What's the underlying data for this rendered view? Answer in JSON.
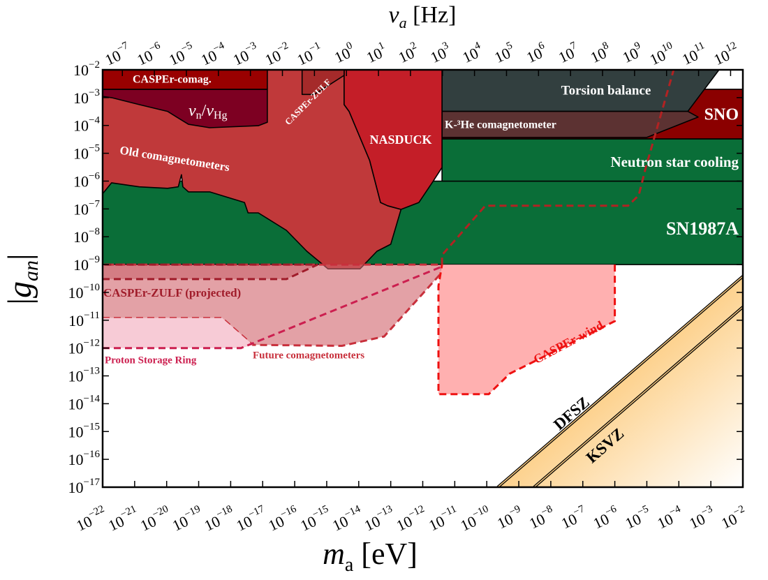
{
  "chart_data": {
    "type": "region",
    "x_label": "ma [eV]",
    "y_label": "|gan|",
    "x2_label": "νa [Hz]",
    "log_x": true,
    "log_y": true,
    "xlim": [
      1e-22,
      0.01
    ],
    "ylim": [
      1e-17,
      0.01
    ],
    "x2lim": [
      2.418e-08,
      2418000000000.0
    ],
    "xticks": [
      {
        "value": 1e-22,
        "label": "10−22"
      },
      {
        "value": 1e-21,
        "label": "10−21"
      },
      {
        "value": 1e-20,
        "label": "10−20"
      },
      {
        "value": 1e-19,
        "label": "10−19"
      },
      {
        "value": 1e-18,
        "label": "10−18"
      },
      {
        "value": 1e-17,
        "label": "10−17"
      },
      {
        "value": 1e-16,
        "label": "10−16"
      },
      {
        "value": 1e-15,
        "label": "10−15"
      },
      {
        "value": 1e-14,
        "label": "10−14"
      },
      {
        "value": 1e-13,
        "label": "10−13"
      },
      {
        "value": 1e-12,
        "label": "10−12"
      },
      {
        "value": 1e-11,
        "label": "10−11"
      },
      {
        "value": 1e-10,
        "label": "10−10"
      },
      {
        "value": 1e-09,
        "label": "10−9"
      },
      {
        "value": 1e-08,
        "label": "10−8"
      },
      {
        "value": 1e-07,
        "label": "10−7"
      },
      {
        "value": 1e-06,
        "label": "10−6"
      },
      {
        "value": 1e-05,
        "label": "10−5"
      },
      {
        "value": 0.0001,
        "label": "10−4"
      },
      {
        "value": 0.001,
        "label": "10−3"
      },
      {
        "value": 0.01,
        "label": "10−2"
      }
    ],
    "yticks": [
      {
        "value": 1e-17,
        "label": "10−17"
      },
      {
        "value": 1e-16,
        "label": "10−16"
      },
      {
        "value": 1e-15,
        "label": "10−15"
      },
      {
        "value": 1e-14,
        "label": "10−14"
      },
      {
        "value": 1e-13,
        "label": "10−13"
      },
      {
        "value": 1e-12,
        "label": "10−12"
      },
      {
        "value": 1e-11,
        "label": "10−11"
      },
      {
        "value": 1e-10,
        "label": "10−10"
      },
      {
        "value": 1e-09,
        "label": "10−9"
      },
      {
        "value": 1e-08,
        "label": "10−8"
      },
      {
        "value": 1e-07,
        "label": "10−7"
      },
      {
        "value": 1e-06,
        "label": "10−6"
      },
      {
        "value": 1e-05,
        "label": "10−5"
      },
      {
        "value": 0.0001,
        "label": "10−4"
      },
      {
        "value": 0.001,
        "label": "10−3"
      },
      {
        "value": 0.01,
        "label": "10−2"
      }
    ],
    "x2ticks": [
      {
        "value": 1e-07,
        "label": "10−7"
      },
      {
        "value": 1e-06,
        "label": "10−6"
      },
      {
        "value": 1e-05,
        "label": "10−5"
      },
      {
        "value": 0.0001,
        "label": "10−4"
      },
      {
        "value": 0.001,
        "label": "10−3"
      },
      {
        "value": 0.01,
        "label": "10−2"
      },
      {
        "value": 0.1,
        "label": "10−1"
      },
      {
        "value": 1,
        "label": "100"
      },
      {
        "value": 10,
        "label": "101"
      },
      {
        "value": 100,
        "label": "102"
      },
      {
        "value": 1000,
        "label": "103"
      },
      {
        "value": 10000.0,
        "label": "104"
      },
      {
        "value": 100000.0,
        "label": "105"
      },
      {
        "value": 1000000.0,
        "label": "106"
      },
      {
        "value": 10000000.0,
        "label": "107"
      },
      {
        "value": 100000000.0,
        "label": "108"
      },
      {
        "value": 1000000000.0,
        "label": "109"
      },
      {
        "value": 10000000000.0,
        "label": "1010"
      },
      {
        "value": 100000000000.0,
        "label": "1011"
      },
      {
        "value": 1000000000000.0,
        "label": "1012"
      }
    ],
    "regions": [
      {
        "x": [
          1e-22,
          0.01,
          0.01,
          1e-22
        ],
        "y": [
          1e-09,
          1e-09,
          1e-06,
          1e-06
        ],
        "color": "#0a6e38",
        "stroke": "#000"
      },
      {
        "x": [
          4e-12,
          0.01,
          0.01,
          4e-12
        ],
        "y": [
          1e-06,
          1e-06,
          3.3e-05,
          3.3e-05
        ],
        "color": "#0a6e38",
        "stroke": "#000"
      },
      {
        "x": [
          4e-12,
          0.01,
          0.01,
          4e-12
        ],
        "y": [
          3.3e-05,
          3.3e-05,
          0.002,
          0.002
        ],
        "color": "#8b0000",
        "stroke": "#000"
      },
      {
        "x": [
          4e-12,
          0.0018,
          0.00019,
          4e-12
        ],
        "y": [
          0.01,
          0.01,
          0.00032,
          0.00032
        ],
        "color": "#323f3f",
        "stroke": "#000"
      },
      {
        "x": [
          4e-12,
          0.00019,
          0.0004,
          1e-05,
          4e-12
        ],
        "y": [
          0.00032,
          0.00032,
          0.0002,
          3.7e-05,
          3.7e-05
        ],
        "color": "#5c3232",
        "stroke": "#000"
      },
      {
        "x": [
          1e-22,
          3.5e-15,
          3.5e-15,
          5e-15,
          2.2e-14,
          4.8e-14,
          8e-14,
          2.1e-13,
          1e-13,
          3.7e-14,
          1.1e-14,
          1.1e-15,
          2.4e-16,
          5.5e-17,
          7.3e-18,
          3.5e-18,
          2.7e-18,
          2.2e-19,
          4.8e-20,
          3.2e-20,
          2.9e-20,
          2.3e-20,
          1.07e-20,
          1.4e-21,
          1.9e-22,
          1e-22
        ],
        "y": [
          0.01,
          0.01,
          0.00056,
          0.00032,
          5.5e-06,
          1.7e-07,
          1.3e-07,
          9.6e-08,
          5.4e-09,
          3e-09,
          7e-10,
          7e-10,
          3e-09,
          1.7e-08,
          7.2e-08,
          7.2e-08,
          1.7e-07,
          4.1e-07,
          4.1e-07,
          6.2e-07,
          1.7e-06,
          6.2e-07,
          5.5e-07,
          6.2e-07,
          8.7e-07,
          3.5e-07
        ],
        "color": "#c0393a",
        "stroke": "#000"
      },
      {
        "x": [
          3.5e-15,
          4e-12,
          4e-12,
          2.1e-12,
          7.6e-13,
          2.1e-13,
          8e-14,
          4.8e-14,
          2.2e-14,
          5e-15,
          3.5e-15
        ],
        "y": [
          0.01,
          0.01,
          3.1e-06,
          9.8e-07,
          1.7e-07,
          9.6e-08,
          1.3e-07,
          1.7e-07,
          5.5e-06,
          0.00032,
          0.00056
        ],
        "color": "#c41e28",
        "stroke": "#000"
      },
      {
        "x": [
          1e-22,
          1.4e-17,
          1.4e-17,
          7.3e-18,
          2.2e-19,
          4.8e-20,
          1.07e-20,
          1.4e-21,
          1.9e-22,
          1e-22
        ],
        "y": [
          0.002,
          0.002,
          0.00013,
          9.8e-05,
          8.3e-05,
          0.00011,
          0.00032,
          0.00056,
          0.001,
          0.0011
        ],
        "color": "#7d0022",
        "stroke": "#000"
      },
      {
        "x": [
          1e-22,
          1.4e-17,
          1.4e-17,
          1e-22
        ],
        "y": [
          0.01,
          0.01,
          0.002,
          0.002
        ],
        "color": "#990000",
        "stroke": "#000"
      },
      {
        "x": [
          1.7e-16,
          3.5e-15,
          3.5e-15,
          4.1e-16,
          1.7e-16
        ],
        "y": [
          0.01,
          0.01,
          0.0063,
          0.0013,
          0.0013
        ],
        "color": "#a52a2a",
        "stroke": "#000"
      },
      {
        "x": [
          1e-22,
          5.4e-19,
          4.9e-18,
          3e-15,
          6.2e-14,
          4e-12,
          4e-12,
          1e-22
        ],
        "y": [
          1.2e-11,
          1.2e-11,
          1.3e-12,
          1.2e-12,
          2.6e-12,
          5.3e-10,
          1e-09,
          1e-09
        ],
        "color": "#d0626a",
        "opacity": 0.6,
        "stroke": "#c8303c",
        "dashed": true
      },
      {
        "x": [
          1e-22,
          5.5e-17,
          5.2e-16,
          1e-22
        ],
        "y": [
          3e-10,
          3e-10,
          1e-09,
          1e-09
        ],
        "color": "#b83a44",
        "opacity": 0.35,
        "stroke": "#a01c2a",
        "dashed": true
      },
      {
        "x": [
          1e-22,
          2.1e-18,
          4.9e-18,
          5.4e-19,
          1e-22
        ],
        "y": [
          1e-12,
          1e-12,
          1.3e-12,
          1.2e-11,
          1.2e-11
        ],
        "color": "#f7cbd6"
      },
      {
        "x": [
          1e-06,
          1e-06,
          5.2e-10,
          1.15e-10,
          3.1e-12,
          3.1e-12,
          4e-12
        ],
        "y": [
          1e-09,
          9.3e-12,
          1.2e-13,
          2.2e-14,
          2.2e-14,
          1.7e-10,
          1e-09
        ],
        "color": "#ffb0b0",
        "stroke": "#ee1111",
        "dashed": true
      },
      {
        "x": [
          2.2e-10,
          0.01,
          0.01
        ],
        "y": [
          1e-17,
          3.8e-10,
          1e-17
        ],
        "color": "#fcc46c",
        "gradient": true
      }
    ],
    "curves": [
      {
        "x": [
          1e-22,
          2.1e-18,
          4e-12
        ],
        "y": [
          1e-12,
          1e-12,
          8.5e-10
        ],
        "color": "#cc1f4f",
        "dashed": true
      },
      {
        "x": [
          4e-12,
          4e-12,
          9e-11,
          2.6e-06,
          5.6e-06,
          9.3e-06,
          6.9e-05
        ],
        "y": [
          1e-09,
          2.2e-09,
          1.3e-07,
          1.3e-07,
          3.1e-07,
          3.1e-06,
          0.01
        ],
        "color": "#b22222",
        "dashed": true
      },
      {
        "x": [
          2.2e-10,
          0.01
        ],
        "y": [
          1e-17,
          3.8e-10
        ],
        "color": "#000",
        "inner": "#f6c880"
      },
      {
        "x": [
          3e-09,
          0.01
        ],
        "y": [
          1e-17,
          3e-11
        ],
        "color": "#000",
        "inner": "#f6c880"
      }
    ],
    "annotations": [
      {
        "text": "CASPEr-comag.",
        "color": "#ffffff"
      },
      {
        "text": "νn/νHg",
        "color": "#ffffff"
      },
      {
        "text": "CASPEr-ZULF",
        "color": "#ffffff"
      },
      {
        "text": "Old comagnetometers",
        "color": "#ffffff"
      },
      {
        "text": "NASDUCK",
        "color": "#ffffff"
      },
      {
        "text": "K-³He comagnetometer",
        "color": "#ffffff"
      },
      {
        "text": "Torsion balance",
        "color": "#ffffff"
      },
      {
        "text": "SNO",
        "color": "#ffffff"
      },
      {
        "text": "Neutron star cooling",
        "color": "#ffffff"
      },
      {
        "text": "SN1987A",
        "color": "#ffffff"
      },
      {
        "text": "CASPEr-ZULF (projected)",
        "color": "#a01c2a"
      },
      {
        "text": "Proton Storage Ring",
        "color": "#cc1f4f"
      },
      {
        "text": "Future comagnetometers",
        "color": "#c8303c"
      },
      {
        "text": "CASPEr-wind",
        "color": "#ee1111"
      },
      {
        "text": "DFSZ",
        "color": "#000000"
      },
      {
        "text": "KSVZ",
        "color": "#000000"
      }
    ]
  }
}
